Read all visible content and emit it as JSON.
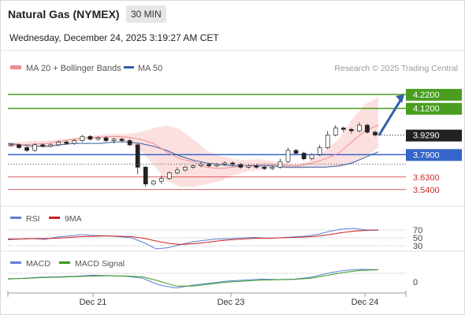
{
  "header": {
    "instrument": "Natural Gas (NYMEX)",
    "timeframe": "30 MIN",
    "datetime": "Wednesday, December 24, 2025 3:19:27 AM CET"
  },
  "main_legend": [
    {
      "label": "MA 20 + Bollinger Bands",
      "color": "#f28b8b"
    },
    {
      "label": "MA 50",
      "color": "#2f5fa8"
    }
  ],
  "credit": "Research © 2025 Trading Central",
  "chart_data": [
    {
      "type": "candlestick",
      "title": "Natural Gas (NYMEX)",
      "yrange": [
        3.46,
        4.36
      ],
      "xticks": [
        "Dec 21",
        "Dec 23",
        "Dec 24"
      ],
      "series": [
        {
          "name": "MA 20 + Bollinger Bands",
          "color": "#f28b8b",
          "ma": [
            3.86,
            3.86,
            3.865,
            3.87,
            3.885,
            3.9,
            3.91,
            3.915,
            3.92,
            3.915,
            3.9,
            3.87,
            3.81,
            3.76,
            3.74,
            3.7,
            3.69,
            3.7,
            3.71,
            3.72,
            3.72,
            3.71,
            3.71,
            3.73,
            3.76,
            3.8,
            3.88,
            3.96,
            4.0
          ],
          "upper": [
            3.88,
            3.88,
            3.89,
            3.89,
            3.9,
            3.91,
            3.92,
            3.93,
            3.94,
            3.94,
            3.95,
            3.98,
            4.0,
            3.97,
            3.9,
            3.82,
            3.78,
            3.76,
            3.75,
            3.76,
            3.74,
            3.73,
            3.72,
            3.75,
            3.82,
            3.9,
            4.04,
            4.15,
            4.2
          ],
          "lower": [
            3.85,
            3.84,
            3.84,
            3.84,
            3.86,
            3.88,
            3.9,
            3.9,
            3.9,
            3.88,
            3.82,
            3.72,
            3.6,
            3.56,
            3.56,
            3.58,
            3.6,
            3.64,
            3.67,
            3.68,
            3.7,
            3.69,
            3.69,
            3.7,
            3.7,
            3.7,
            3.72,
            3.77,
            3.84
          ]
        },
        {
          "name": "MA 50",
          "color": "#2f5fa8",
          "values": [
            3.87,
            3.86,
            3.85,
            3.85,
            3.86,
            3.87,
            3.87,
            3.87,
            3.88,
            3.88,
            3.87,
            3.85,
            3.82,
            3.78,
            3.75,
            3.73,
            3.72,
            3.71,
            3.71,
            3.71,
            3.71,
            3.7,
            3.7,
            3.7,
            3.7,
            3.71,
            3.73,
            3.77,
            3.81
          ]
        }
      ],
      "candles": [
        [
          3.86,
          3.86,
          3.85,
          3.87
        ],
        [
          3.86,
          3.84,
          3.83,
          3.87
        ],
        [
          3.84,
          3.82,
          3.81,
          3.85
        ],
        [
          3.82,
          3.86,
          3.81,
          3.87
        ],
        [
          3.86,
          3.85,
          3.84,
          3.87
        ],
        [
          3.85,
          3.86,
          3.84,
          3.87
        ],
        [
          3.86,
          3.88,
          3.85,
          3.89
        ],
        [
          3.88,
          3.87,
          3.86,
          3.89
        ],
        [
          3.87,
          3.89,
          3.86,
          3.9
        ],
        [
          3.89,
          3.92,
          3.88,
          3.93
        ],
        [
          3.92,
          3.9,
          3.89,
          3.93
        ],
        [
          3.9,
          3.91,
          3.89,
          3.92
        ],
        [
          3.91,
          3.89,
          3.88,
          3.92
        ],
        [
          3.89,
          3.9,
          3.87,
          3.91
        ],
        [
          3.9,
          3.89,
          3.88,
          3.91
        ],
        [
          3.89,
          3.86,
          3.85,
          3.9
        ],
        [
          3.86,
          3.7,
          3.65,
          3.87
        ],
        [
          3.7,
          3.58,
          3.56,
          3.71
        ],
        [
          3.58,
          3.6,
          3.57,
          3.61
        ],
        [
          3.6,
          3.62,
          3.58,
          3.64
        ],
        [
          3.62,
          3.66,
          3.61,
          3.67
        ],
        [
          3.66,
          3.68,
          3.65,
          3.7
        ],
        [
          3.68,
          3.7,
          3.67,
          3.71
        ],
        [
          3.7,
          3.71,
          3.69,
          3.72
        ],
        [
          3.71,
          3.72,
          3.7,
          3.74
        ],
        [
          3.72,
          3.71,
          3.7,
          3.73
        ],
        [
          3.71,
          3.72,
          3.7,
          3.73
        ],
        [
          3.72,
          3.73,
          3.71,
          3.74
        ],
        [
          3.73,
          3.72,
          3.71,
          3.74
        ],
        [
          3.72,
          3.7,
          3.69,
          3.73
        ],
        [
          3.7,
          3.71,
          3.69,
          3.72
        ],
        [
          3.71,
          3.7,
          3.69,
          3.72
        ],
        [
          3.7,
          3.69,
          3.68,
          3.71
        ],
        [
          3.69,
          3.7,
          3.68,
          3.71
        ],
        [
          3.7,
          3.74,
          3.69,
          3.76
        ],
        [
          3.74,
          3.82,
          3.73,
          3.84
        ],
        [
          3.82,
          3.8,
          3.79,
          3.83
        ],
        [
          3.8,
          3.76,
          3.75,
          3.81
        ],
        [
          3.76,
          3.79,
          3.75,
          3.8
        ],
        [
          3.79,
          3.84,
          3.78,
          3.86
        ],
        [
          3.84,
          3.93,
          3.83,
          3.96
        ],
        [
          3.93,
          3.98,
          3.92,
          4.0
        ],
        [
          3.98,
          3.97,
          3.95,
          3.99
        ],
        [
          3.97,
          3.96,
          3.94,
          3.98
        ],
        [
          3.96,
          4.0,
          3.95,
          4.02
        ],
        [
          4.0,
          3.95,
          3.94,
          4.01
        ],
        [
          3.95,
          3.93,
          3.92,
          3.96
        ]
      ],
      "levels": [
        {
          "value": 4.22,
          "label": "4.2200",
          "kind": "resistance"
        },
        {
          "value": 4.12,
          "label": "4.1200",
          "kind": "resistance"
        },
        {
          "value": 3.929,
          "label": "3.9290",
          "kind": "last"
        },
        {
          "value": 3.79,
          "label": "3.7900",
          "kind": "pivot"
        },
        {
          "value": 3.63,
          "label": "3.6300",
          "kind": "support"
        },
        {
          "value": 3.54,
          "label": "3.5400",
          "kind": "support"
        }
      ],
      "scenario_arrow": {
        "from": 3.929,
        "to": 4.22
      }
    },
    {
      "type": "line",
      "title": "RSI",
      "yrange": [
        20,
        80
      ],
      "yticks": [
        "70",
        "50",
        "30"
      ],
      "series": [
        {
          "name": "RSI",
          "color": "#5b7fd6",
          "values": [
            45,
            47,
            48,
            46,
            52,
            55,
            58,
            56,
            55,
            53,
            50,
            38,
            22,
            25,
            33,
            40,
            44,
            47,
            48,
            50,
            51,
            49,
            50,
            52,
            54,
            58,
            66,
            72,
            74,
            70,
            69
          ]
        },
        {
          "name": "9MA",
          "color": "#cc1f1f",
          "values": [
            47,
            47,
            48,
            48,
            49,
            51,
            53,
            54,
            55,
            54,
            53,
            49,
            42,
            36,
            33,
            35,
            38,
            42,
            45,
            47,
            49,
            49,
            50,
            51,
            52,
            54,
            58,
            63,
            67,
            69,
            70
          ]
        }
      ]
    },
    {
      "type": "line",
      "title": "MACD",
      "yticks": [
        "0"
      ],
      "series": [
        {
          "name": "MACD",
          "color": "#5b7fd6",
          "values": [
            0.01,
            0.015,
            0.02,
            0.022,
            0.025,
            0.03,
            0.028,
            0.025,
            0.015,
            -0.02,
            -0.035,
            -0.02,
            -0.01,
            0.0,
            0.005,
            0.01,
            0.008,
            0.01,
            0.02,
            0.04,
            0.055,
            0.06,
            0.058
          ]
        },
        {
          "name": "MACD Signal",
          "color": "#3a9a1f",
          "values": [
            0.012,
            0.014,
            0.018,
            0.02,
            0.023,
            0.026,
            0.027,
            0.026,
            0.022,
            0.0,
            -0.025,
            -0.025,
            -0.015,
            -0.005,
            0.0,
            0.005,
            0.007,
            0.009,
            0.015,
            0.03,
            0.045,
            0.055,
            0.058
          ]
        }
      ]
    }
  ]
}
